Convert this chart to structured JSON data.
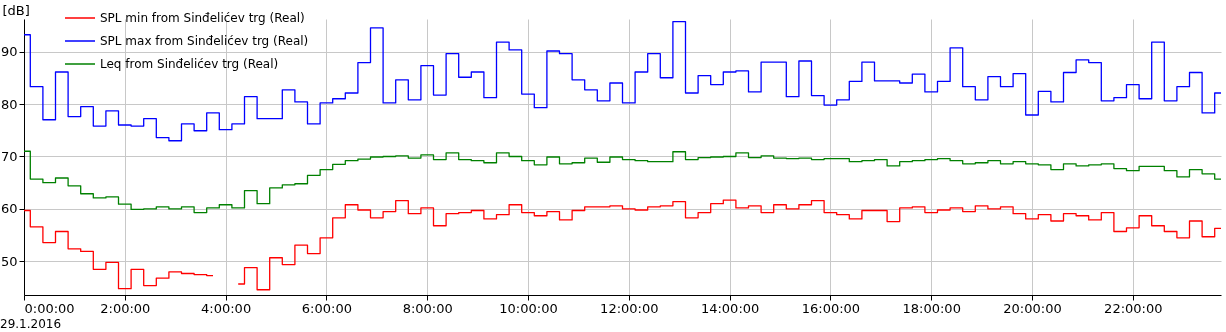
{
  "chart_data": {
    "type": "step",
    "ylabel": "[dB]",
    "x": [
      0,
      0.25,
      0.5,
      0.75,
      1,
      1.25,
      1.5,
      1.75,
      2,
      2.25,
      2.5,
      2.75,
      3,
      3.25,
      3.5,
      3.75,
      4,
      4.25,
      4.5,
      4.75,
      5,
      5.25,
      5.5,
      5.75,
      6,
      6.25,
      6.5,
      6.75,
      7,
      7.25,
      7.5,
      7.75,
      8,
      8.25,
      8.5,
      8.75,
      9,
      9.25,
      9.5,
      9.75,
      10,
      10.25,
      10.5,
      10.75,
      11,
      11.25,
      11.5,
      11.75,
      12,
      12.25,
      12.5,
      12.75,
      13,
      13.25,
      13.5,
      13.75,
      14,
      14.25,
      14.5,
      14.75,
      15,
      15.25,
      15.5,
      15.75,
      16,
      16.25,
      16.5,
      16.75,
      17,
      17.25,
      17.5,
      17.75,
      18,
      18.25,
      18.5,
      18.75,
      19,
      19.25,
      19.5,
      19.75,
      20,
      20.25,
      20.5,
      20.75,
      21,
      21.25,
      21.5,
      21.75,
      22,
      22.25,
      22.5,
      22.75,
      23,
      23.25,
      23.5,
      23.75
    ],
    "series": [
      {
        "name": "SPL min from Sinđelićev trg (Real)",
        "color": "#ff0000",
        "values": [
          59.7,
          56.6,
          53.6,
          55.7,
          52.4,
          51.9,
          48.5,
          49.8,
          44.8,
          48.5,
          45.4,
          46.8,
          48.0,
          47.7,
          47.5,
          47.3,
          null,
          45.7,
          48.8,
          44.6,
          50.7,
          49.4,
          53.1,
          51.5,
          54.5,
          58.3,
          60.8,
          59.8,
          58.3,
          59.5,
          61.6,
          59.1,
          60.2,
          56.8,
          59.1,
          59.3,
          59.7,
          58.1,
          58.9,
          60.8,
          59.3,
          58.7,
          59.5,
          57.9,
          59.7,
          60.4,
          60.4,
          60.6,
          60.0,
          59.8,
          60.4,
          60.6,
          61.4,
          58.3,
          59.3,
          61.0,
          61.7,
          60.2,
          60.6,
          59.3,
          60.8,
          60.0,
          60.8,
          61.6,
          59.3,
          58.9,
          58.1,
          59.7,
          59.7,
          57.6,
          60.2,
          60.4,
          59.3,
          59.8,
          60.2,
          59.5,
          60.6,
          60.0,
          60.4,
          59.1,
          58.1,
          58.9,
          57.7,
          59.1,
          58.7,
          57.9,
          59.3,
          55.7,
          56.4,
          58.7,
          56.8,
          55.7,
          54.5,
          57.7,
          54.7,
          56.3
        ]
      },
      {
        "name": "SPL max from Sinđelićev trg (Real)",
        "color": "#0000ff",
        "values": [
          93.2,
          83.3,
          77.0,
          86.1,
          77.6,
          79.5,
          75.8,
          78.7,
          76.0,
          75.8,
          77.2,
          73.6,
          73.0,
          76.2,
          74.9,
          78.3,
          75.1,
          76.2,
          81.4,
          77.2,
          77.2,
          82.7,
          80.4,
          76.2,
          80.2,
          81.0,
          82.1,
          87.9,
          94.5,
          80.2,
          84.6,
          80.8,
          87.3,
          81.7,
          89.6,
          85.1,
          86.1,
          81.2,
          91.8,
          90.3,
          81.9,
          79.3,
          90.1,
          89.6,
          84.6,
          82.7,
          80.6,
          84.0,
          80.2,
          86.1,
          89.6,
          85.0,
          95.7,
          82.1,
          85.4,
          83.7,
          86.1,
          86.3,
          82.3,
          88.0,
          88.0,
          81.4,
          88.2,
          81.6,
          79.8,
          80.8,
          84.3,
          88.0,
          84.4,
          84.4,
          84.0,
          85.7,
          82.3,
          84.3,
          90.7,
          83.3,
          80.8,
          85.2,
          83.3,
          85.8,
          77.9,
          82.4,
          80.4,
          86.0,
          88.4,
          87.9,
          80.6,
          81.2,
          83.7,
          81.0,
          91.8,
          80.6,
          83.3,
          86.0,
          78.3,
          82.1
        ]
      },
      {
        "name": "Leq from Sinđelićev trg (Real)",
        "color": "#008000",
        "values": [
          71.0,
          65.7,
          65.0,
          65.9,
          64.4,
          62.9,
          62.1,
          62.3,
          60.9,
          59.9,
          60.0,
          60.4,
          60.0,
          60.4,
          59.3,
          60.2,
          60.8,
          60.2,
          63.5,
          61.0,
          64.0,
          64.6,
          64.8,
          66.4,
          67.5,
          68.5,
          69.2,
          69.5,
          69.9,
          70.0,
          70.1,
          69.7,
          70.3,
          69.4,
          70.7,
          69.4,
          69.2,
          68.8,
          70.7,
          70.0,
          69.2,
          68.4,
          69.9,
          68.6,
          68.8,
          69.7,
          68.9,
          69.9,
          69.4,
          69.2,
          69.0,
          69.0,
          70.9,
          69.4,
          69.8,
          69.9,
          70.0,
          70.7,
          69.8,
          70.1,
          69.7,
          69.6,
          69.7,
          69.4,
          69.6,
          69.6,
          69.0,
          69.2,
          69.4,
          68.2,
          69.0,
          69.2,
          69.4,
          69.6,
          69.2,
          68.6,
          68.8,
          69.2,
          68.6,
          69.0,
          68.6,
          68.4,
          67.5,
          68.6,
          68.2,
          68.4,
          68.6,
          67.7,
          67.3,
          68.1,
          68.1,
          67.3,
          66.1,
          67.5,
          66.7,
          65.7
        ]
      }
    ],
    "xlim": [
      0,
      23.75
    ],
    "xticks": [
      {
        "value": 0,
        "label": "0:00:00"
      },
      {
        "value": 2,
        "label": "2:00:00"
      },
      {
        "value": 4,
        "label": "4:00:00"
      },
      {
        "value": 6,
        "label": "6:00:00"
      },
      {
        "value": 8,
        "label": "8:00:00"
      },
      {
        "value": 10,
        "label": "10:00:00"
      },
      {
        "value": 12,
        "label": "12:00:00"
      },
      {
        "value": 14,
        "label": "14:00:00"
      },
      {
        "value": 16,
        "label": "16:00:00"
      },
      {
        "value": 18,
        "label": "18:00:00"
      },
      {
        "value": 20,
        "label": "20:00:00"
      },
      {
        "value": 22,
        "label": "22:00:00"
      }
    ],
    "ylim": [
      43.6,
      96.2
    ],
    "yticks": [
      50,
      60,
      70,
      80,
      90
    ],
    "grid": true,
    "legend": "top left",
    "annotations": [
      "29.1.2016"
    ]
  }
}
